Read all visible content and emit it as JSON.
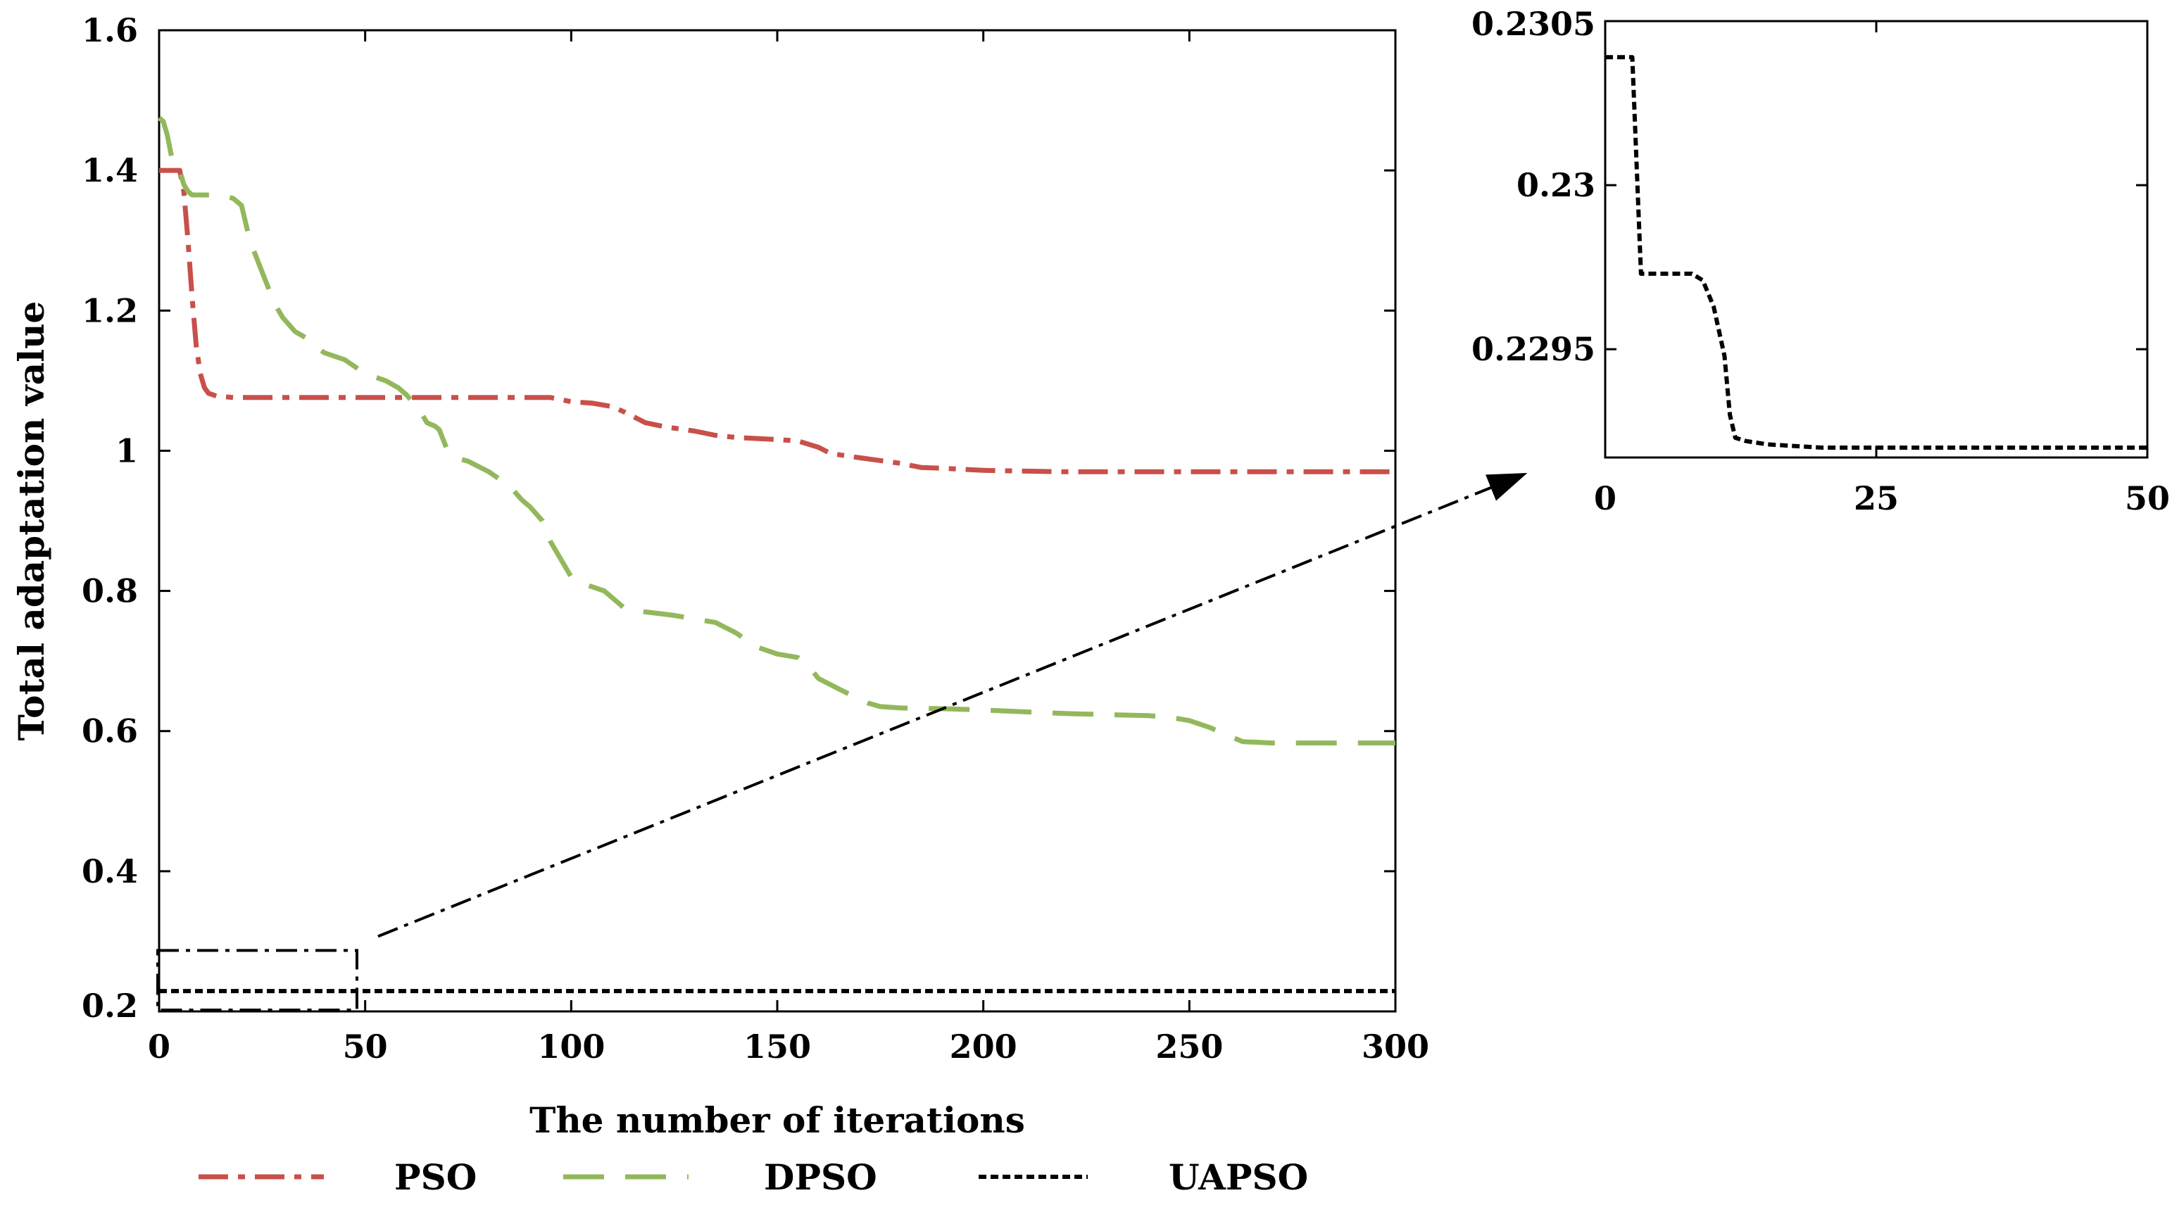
{
  "colors": {
    "pso": "#c8504a",
    "dpso": "#93b85c",
    "uapso": "#000000",
    "axis": "#000000"
  },
  "chart_data": [
    {
      "type": "line",
      "title": "",
      "xlabel": "The number of iterations",
      "ylabel": "Total adaptation value",
      "xlim": [
        0,
        300
      ],
      "ylim": [
        0.2,
        1.6
      ],
      "xticks": [
        0,
        50,
        100,
        150,
        200,
        250,
        300
      ],
      "xtick_labels": [
        "0",
        "50",
        "100",
        "150",
        "200",
        "250",
        "300"
      ],
      "yticks": [
        0.2,
        0.4,
        0.6,
        0.8,
        1.0,
        1.2,
        1.4,
        1.6
      ],
      "ytick_labels": [
        "0.2",
        "0.4",
        "0.6",
        "0.8",
        "1",
        "1.2",
        "1.4",
        "1.6"
      ],
      "grid": false,
      "legend_position": "bottom",
      "zoom_box": {
        "x": [
          0,
          48
        ],
        "y": [
          0.2,
          0.287
        ]
      },
      "series": [
        {
          "name": "PSO",
          "style": "dash-dot",
          "x": [
            0,
            5,
            6,
            7,
            8,
            9,
            10,
            11,
            12,
            14,
            18,
            30,
            50,
            70,
            95,
            100,
            105,
            110,
            113,
            118,
            123,
            130,
            135,
            140,
            150,
            155,
            160,
            163,
            170,
            180,
            185,
            190,
            200,
            220,
            250,
            300
          ],
          "y": [
            1.4,
            1.4,
            1.37,
            1.3,
            1.22,
            1.15,
            1.11,
            1.09,
            1.082,
            1.078,
            1.076,
            1.076,
            1.076,
            1.076,
            1.076,
            1.07,
            1.068,
            1.063,
            1.055,
            1.04,
            1.034,
            1.028,
            1.022,
            1.019,
            1.016,
            1.014,
            1.005,
            0.996,
            0.99,
            0.982,
            0.976,
            0.975,
            0.972,
            0.97,
            0.97,
            0.97
          ]
        },
        {
          "name": "DPSO",
          "style": "dash",
          "x": [
            0,
            1,
            2,
            3,
            4,
            5,
            6,
            7,
            8,
            15,
            18,
            20,
            22,
            24,
            26,
            28,
            30,
            33,
            36,
            40,
            45,
            50,
            55,
            58,
            60,
            63,
            65,
            67,
            68,
            70,
            72,
            75,
            80,
            85,
            88,
            90,
            93,
            95,
            98,
            100,
            103,
            108,
            110,
            113,
            118,
            125,
            130,
            135,
            140,
            145,
            150,
            155,
            158,
            160,
            165,
            170,
            172,
            175,
            180,
            190,
            200,
            220,
            240,
            245,
            250,
            255,
            260,
            263,
            270,
            300
          ],
          "y": [
            1.475,
            1.47,
            1.45,
            1.42,
            1.41,
            1.4,
            1.38,
            1.37,
            1.365,
            1.365,
            1.36,
            1.35,
            1.3,
            1.27,
            1.24,
            1.21,
            1.19,
            1.17,
            1.16,
            1.14,
            1.13,
            1.11,
            1.1,
            1.09,
            1.08,
            1.06,
            1.04,
            1.035,
            1.03,
            1.0,
            0.99,
            0.985,
            0.97,
            0.95,
            0.93,
            0.92,
            0.9,
            0.87,
            0.84,
            0.82,
            0.81,
            0.8,
            0.79,
            0.775,
            0.77,
            0.765,
            0.76,
            0.755,
            0.74,
            0.72,
            0.71,
            0.705,
            0.69,
            0.675,
            0.66,
            0.645,
            0.64,
            0.635,
            0.633,
            0.632,
            0.63,
            0.625,
            0.622,
            0.62,
            0.615,
            0.605,
            0.592,
            0.585,
            0.583,
            0.583
          ]
        },
        {
          "name": "UAPSO",
          "style": "dotted",
          "x": [
            0,
            300
          ],
          "y": [
            0.229,
            0.229
          ]
        }
      ]
    },
    {
      "type": "line",
      "title": "",
      "xlabel": "",
      "ylabel": "",
      "xlim": [
        0,
        50
      ],
      "ylim": [
        0.22917,
        0.2305
      ],
      "xticks": [
        0,
        25,
        50
      ],
      "xtick_labels": [
        "0",
        "25",
        "50"
      ],
      "yticks": [
        0.2295,
        0.23,
        0.2305
      ],
      "ytick_labels": [
        "0.2295",
        "0.23",
        "0.2305"
      ],
      "grid": false,
      "series": [
        {
          "name": "UAPSO",
          "style": "dotted",
          "x": [
            0,
            2,
            2.5,
            3.3,
            8,
            9,
            10,
            11,
            11.5,
            12,
            13,
            15,
            20,
            30,
            50
          ],
          "y": [
            0.23039,
            0.23039,
            0.23039,
            0.22973,
            0.22973,
            0.22971,
            0.22963,
            0.22948,
            0.2293,
            0.22923,
            0.22922,
            0.22921,
            0.2292,
            0.2292,
            0.2292
          ]
        }
      ]
    }
  ],
  "legend": {
    "items": [
      {
        "label": "PSO",
        "style": "dash-dot"
      },
      {
        "label": "DPSO",
        "style": "dash"
      },
      {
        "label": "UAPSO",
        "style": "dotted"
      }
    ]
  }
}
